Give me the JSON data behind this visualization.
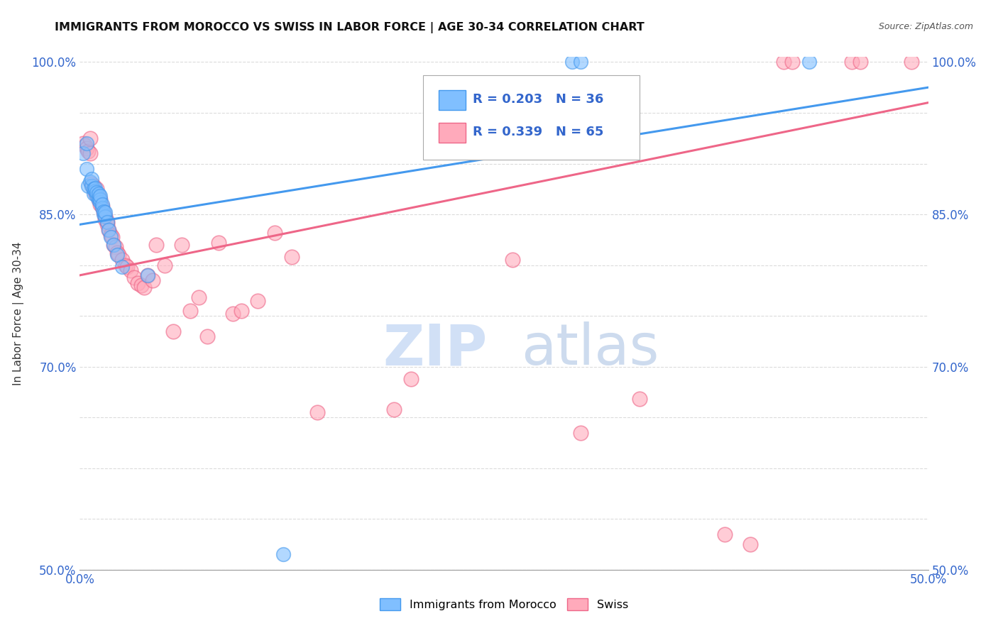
{
  "title": "IMMIGRANTS FROM MOROCCO VS SWISS IN LABOR FORCE | AGE 30-34 CORRELATION CHART",
  "source": "Source: ZipAtlas.com",
  "ylabel": "In Labor Force | Age 30-34",
  "xlim": [
    0.0,
    0.5
  ],
  "ylim": [
    0.5,
    1.005
  ],
  "xticks": [
    0.0,
    0.05,
    0.1,
    0.15,
    0.2,
    0.25,
    0.3,
    0.35,
    0.4,
    0.45,
    0.5
  ],
  "xticklabels": [
    "0.0%",
    "",
    "",
    "",
    "",
    "",
    "",
    "",
    "",
    "",
    "50.0%"
  ],
  "yticks": [
    0.5,
    0.55,
    0.6,
    0.65,
    0.7,
    0.75,
    0.8,
    0.85,
    0.9,
    0.95,
    1.0
  ],
  "yticklabels": [
    "50.0%",
    "",
    "",
    "",
    "70.0%",
    "",
    "",
    "85.0%",
    "",
    "",
    "100.0%"
  ],
  "morocco_color": "#80bfff",
  "swiss_color": "#ffaabb",
  "morocco_line_color": "#4499ee",
  "swiss_line_color": "#ee6688",
  "R_morocco": 0.203,
  "N_morocco": 36,
  "R_swiss": 0.339,
  "N_swiss": 65,
  "legend_label_morocco": "Immigrants from Morocco",
  "legend_label_swiss": "Swiss",
  "morocco_x": [
    0.002,
    0.004,
    0.004,
    0.005,
    0.006,
    0.007,
    0.007,
    0.008,
    0.008,
    0.009,
    0.009,
    0.01,
    0.01,
    0.011,
    0.011,
    0.011,
    0.012,
    0.012,
    0.012,
    0.013,
    0.013,
    0.014,
    0.014,
    0.015,
    0.015,
    0.016,
    0.017,
    0.018,
    0.02,
    0.022,
    0.025,
    0.04,
    0.12,
    0.29,
    0.295,
    0.43
  ],
  "morocco_y": [
    0.91,
    0.895,
    0.92,
    0.878,
    0.882,
    0.878,
    0.885,
    0.87,
    0.875,
    0.873,
    0.876,
    0.868,
    0.872,
    0.864,
    0.867,
    0.87,
    0.862,
    0.865,
    0.868,
    0.856,
    0.86,
    0.85,
    0.853,
    0.848,
    0.852,
    0.842,
    0.835,
    0.828,
    0.82,
    0.81,
    0.798,
    0.79,
    0.515,
    1.0,
    1.0,
    1.0
  ],
  "swiss_x": [
    0.002,
    0.003,
    0.004,
    0.005,
    0.006,
    0.006,
    0.007,
    0.008,
    0.008,
    0.009,
    0.01,
    0.01,
    0.011,
    0.011,
    0.012,
    0.012,
    0.013,
    0.014,
    0.015,
    0.015,
    0.016,
    0.016,
    0.017,
    0.018,
    0.019,
    0.02,
    0.021,
    0.022,
    0.023,
    0.025,
    0.027,
    0.028,
    0.03,
    0.032,
    0.034,
    0.036,
    0.038,
    0.04,
    0.043,
    0.045,
    0.05,
    0.055,
    0.06,
    0.065,
    0.07,
    0.075,
    0.082,
    0.09,
    0.095,
    0.105,
    0.115,
    0.125,
    0.14,
    0.185,
    0.195,
    0.255,
    0.295,
    0.33,
    0.38,
    0.395,
    0.415,
    0.42,
    0.455,
    0.46,
    0.49
  ],
  "swiss_y": [
    0.92,
    0.918,
    0.915,
    0.912,
    0.91,
    0.925,
    0.88,
    0.875,
    0.878,
    0.872,
    0.87,
    0.875,
    0.865,
    0.868,
    0.86,
    0.865,
    0.858,
    0.852,
    0.845,
    0.848,
    0.84,
    0.843,
    0.835,
    0.83,
    0.828,
    0.82,
    0.818,
    0.812,
    0.81,
    0.805,
    0.8,
    0.798,
    0.795,
    0.788,
    0.782,
    0.78,
    0.778,
    0.79,
    0.785,
    0.82,
    0.8,
    0.735,
    0.82,
    0.755,
    0.768,
    0.73,
    0.822,
    0.752,
    0.755,
    0.765,
    0.832,
    0.808,
    0.655,
    0.658,
    0.688,
    0.805,
    0.635,
    0.668,
    0.535,
    0.525,
    1.0,
    1.0,
    1.0,
    1.0,
    1.0
  ],
  "trend_morocco_x0": 0.0,
  "trend_morocco_y0": 0.84,
  "trend_morocco_x1": 0.5,
  "trend_morocco_y1": 0.975,
  "trend_swiss_x0": 0.0,
  "trend_swiss_y0": 0.79,
  "trend_swiss_x1": 0.5,
  "trend_swiss_y1": 0.96
}
